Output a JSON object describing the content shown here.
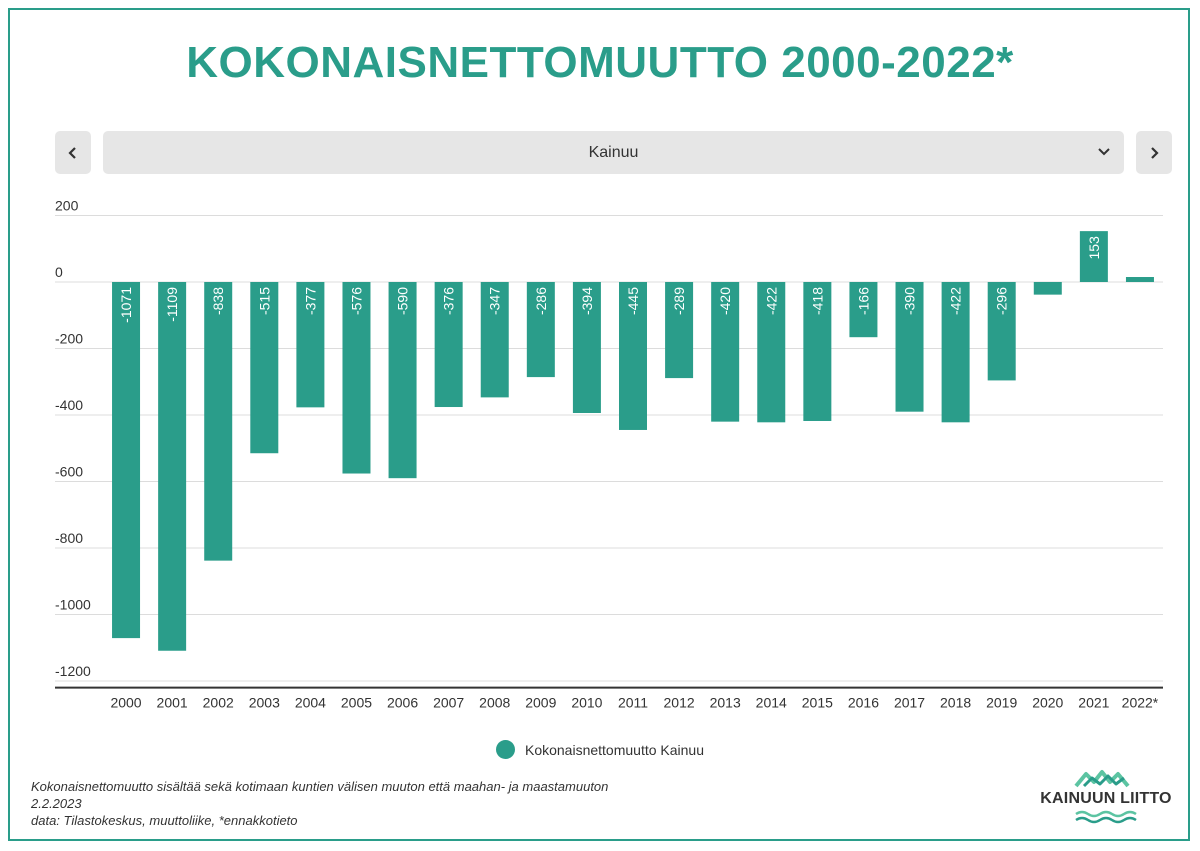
{
  "title": "KOKONAISNETTOMUUTTO 2000-2022*",
  "selector": {
    "prev_icon": "chevron-left-icon",
    "next_icon": "chevron-right-icon",
    "selected": "Kainuu",
    "dropdown_icon": "chevron-down-icon"
  },
  "colors": {
    "accent": "#2a9d8a",
    "bar": "#2a9d8a",
    "grid": "#dcdcdc",
    "control_bg": "#e6e6e6"
  },
  "chart_data": {
    "type": "bar",
    "categories": [
      "2000",
      "2001",
      "2002",
      "2003",
      "2004",
      "2005",
      "2006",
      "2007",
      "2008",
      "2009",
      "2010",
      "2011",
      "2012",
      "2013",
      "2014",
      "2015",
      "2016",
      "2017",
      "2018",
      "2019",
      "2020",
      "2021",
      "2022*"
    ],
    "series": [
      {
        "name": "Kokonaisnettomuutto Kainuu",
        "values": [
          -1071,
          -1109,
          -838,
          -515,
          -377,
          -576,
          -590,
          -376,
          -347,
          -286,
          -394,
          -445,
          -289,
          -420,
          -422,
          -418,
          -166,
          -390,
          -422,
          -296,
          -38,
          153,
          15
        ],
        "data_labels": [
          "-1071",
          "-1109",
          "-838",
          "-515",
          "-377",
          "-576",
          "-590",
          "-376",
          "-347",
          "-286",
          "-394",
          "-445",
          "-289",
          "-420",
          "-422",
          "-418",
          "-166",
          "-390",
          "-422",
          "-296",
          "",
          "153",
          ""
        ]
      }
    ],
    "y_ticks": [
      "200",
      "0",
      "-200",
      "-400",
      "-600",
      "-800",
      "-1000",
      "-1200"
    ],
    "y_tick_values": [
      200,
      0,
      -200,
      -400,
      -600,
      -800,
      -1000,
      -1200
    ],
    "ylim": [
      -1220,
      200
    ],
    "grid": true,
    "legend_position": "bottom-center"
  },
  "legend": {
    "label": "Kokonaisnettomuutto Kainuu"
  },
  "footnotes": {
    "line1": "Kokonaisnettomuutto sisältää sekä kotimaan kuntien välisen muuton että maahan- ja maastamuuton",
    "line2": "2.2.2023",
    "line3": "data: Tilastokeskus, muuttoliike, *ennakkotieto"
  },
  "logo": {
    "text": "KAINUUN LIITTO"
  }
}
